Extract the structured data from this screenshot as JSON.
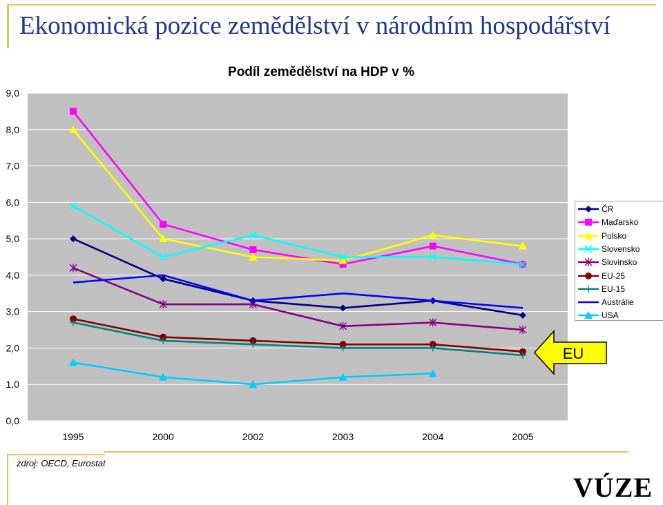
{
  "slide_title": "Ekonomická pozice zemědělství v národním hospodářství",
  "source_note": "zdroj: OECD, Eurostat",
  "logo_text": "VÚZE",
  "eu_arrow_label": "EU",
  "chart_data": {
    "type": "line",
    "title": "Podíl zemědělství na HDP v %",
    "xlabel": "",
    "ylabel": "",
    "categories": [
      "1995",
      "2000",
      "2002",
      "2003",
      "2004",
      "2005"
    ],
    "ylim": [
      0,
      9
    ],
    "yticks": [
      "0,0",
      "1,0",
      "2,0",
      "3,0",
      "4,0",
      "5,0",
      "6,0",
      "7,0",
      "8,0",
      "9,0"
    ],
    "grid": true,
    "legend_position": "right",
    "series": [
      {
        "name": "ČR",
        "color": "#000080",
        "marker": "diamond",
        "values": [
          5.0,
          3.9,
          3.3,
          3.1,
          3.3,
          2.9
        ]
      },
      {
        "name": "Maďarsko",
        "color": "#ff00ff",
        "marker": "square",
        "values": [
          8.5,
          5.4,
          4.7,
          4.3,
          4.8,
          4.3
        ]
      },
      {
        "name": "Polsko",
        "color": "#ffff00",
        "marker": "triangle",
        "values": [
          8.0,
          5.0,
          4.5,
          4.4,
          5.1,
          4.8
        ]
      },
      {
        "name": "Slovensko",
        "color": "#00ffff",
        "marker": "x",
        "values": [
          5.9,
          4.5,
          5.1,
          4.5,
          4.5,
          4.3
        ]
      },
      {
        "name": "Slovinsko",
        "color": "#800080",
        "marker": "star",
        "values": [
          4.2,
          3.2,
          3.2,
          2.6,
          2.7,
          2.5
        ]
      },
      {
        "name": "EU-25",
        "color": "#800000",
        "marker": "circle",
        "values": [
          2.8,
          2.3,
          2.2,
          2.1,
          2.1,
          1.9
        ]
      },
      {
        "name": "EU-15",
        "color": "#008080",
        "marker": "plus",
        "values": [
          2.7,
          2.2,
          2.1,
          2.0,
          2.0,
          1.8
        ]
      },
      {
        "name": "Austrálie",
        "color": "#0000ff",
        "marker": "none",
        "values": [
          3.8,
          4.0,
          3.3,
          3.5,
          3.3,
          3.1
        ]
      },
      {
        "name": "USA",
        "color": "#00ccff",
        "marker": "triangle",
        "values": [
          1.6,
          1.2,
          1.0,
          1.2,
          1.3,
          null
        ]
      }
    ]
  }
}
